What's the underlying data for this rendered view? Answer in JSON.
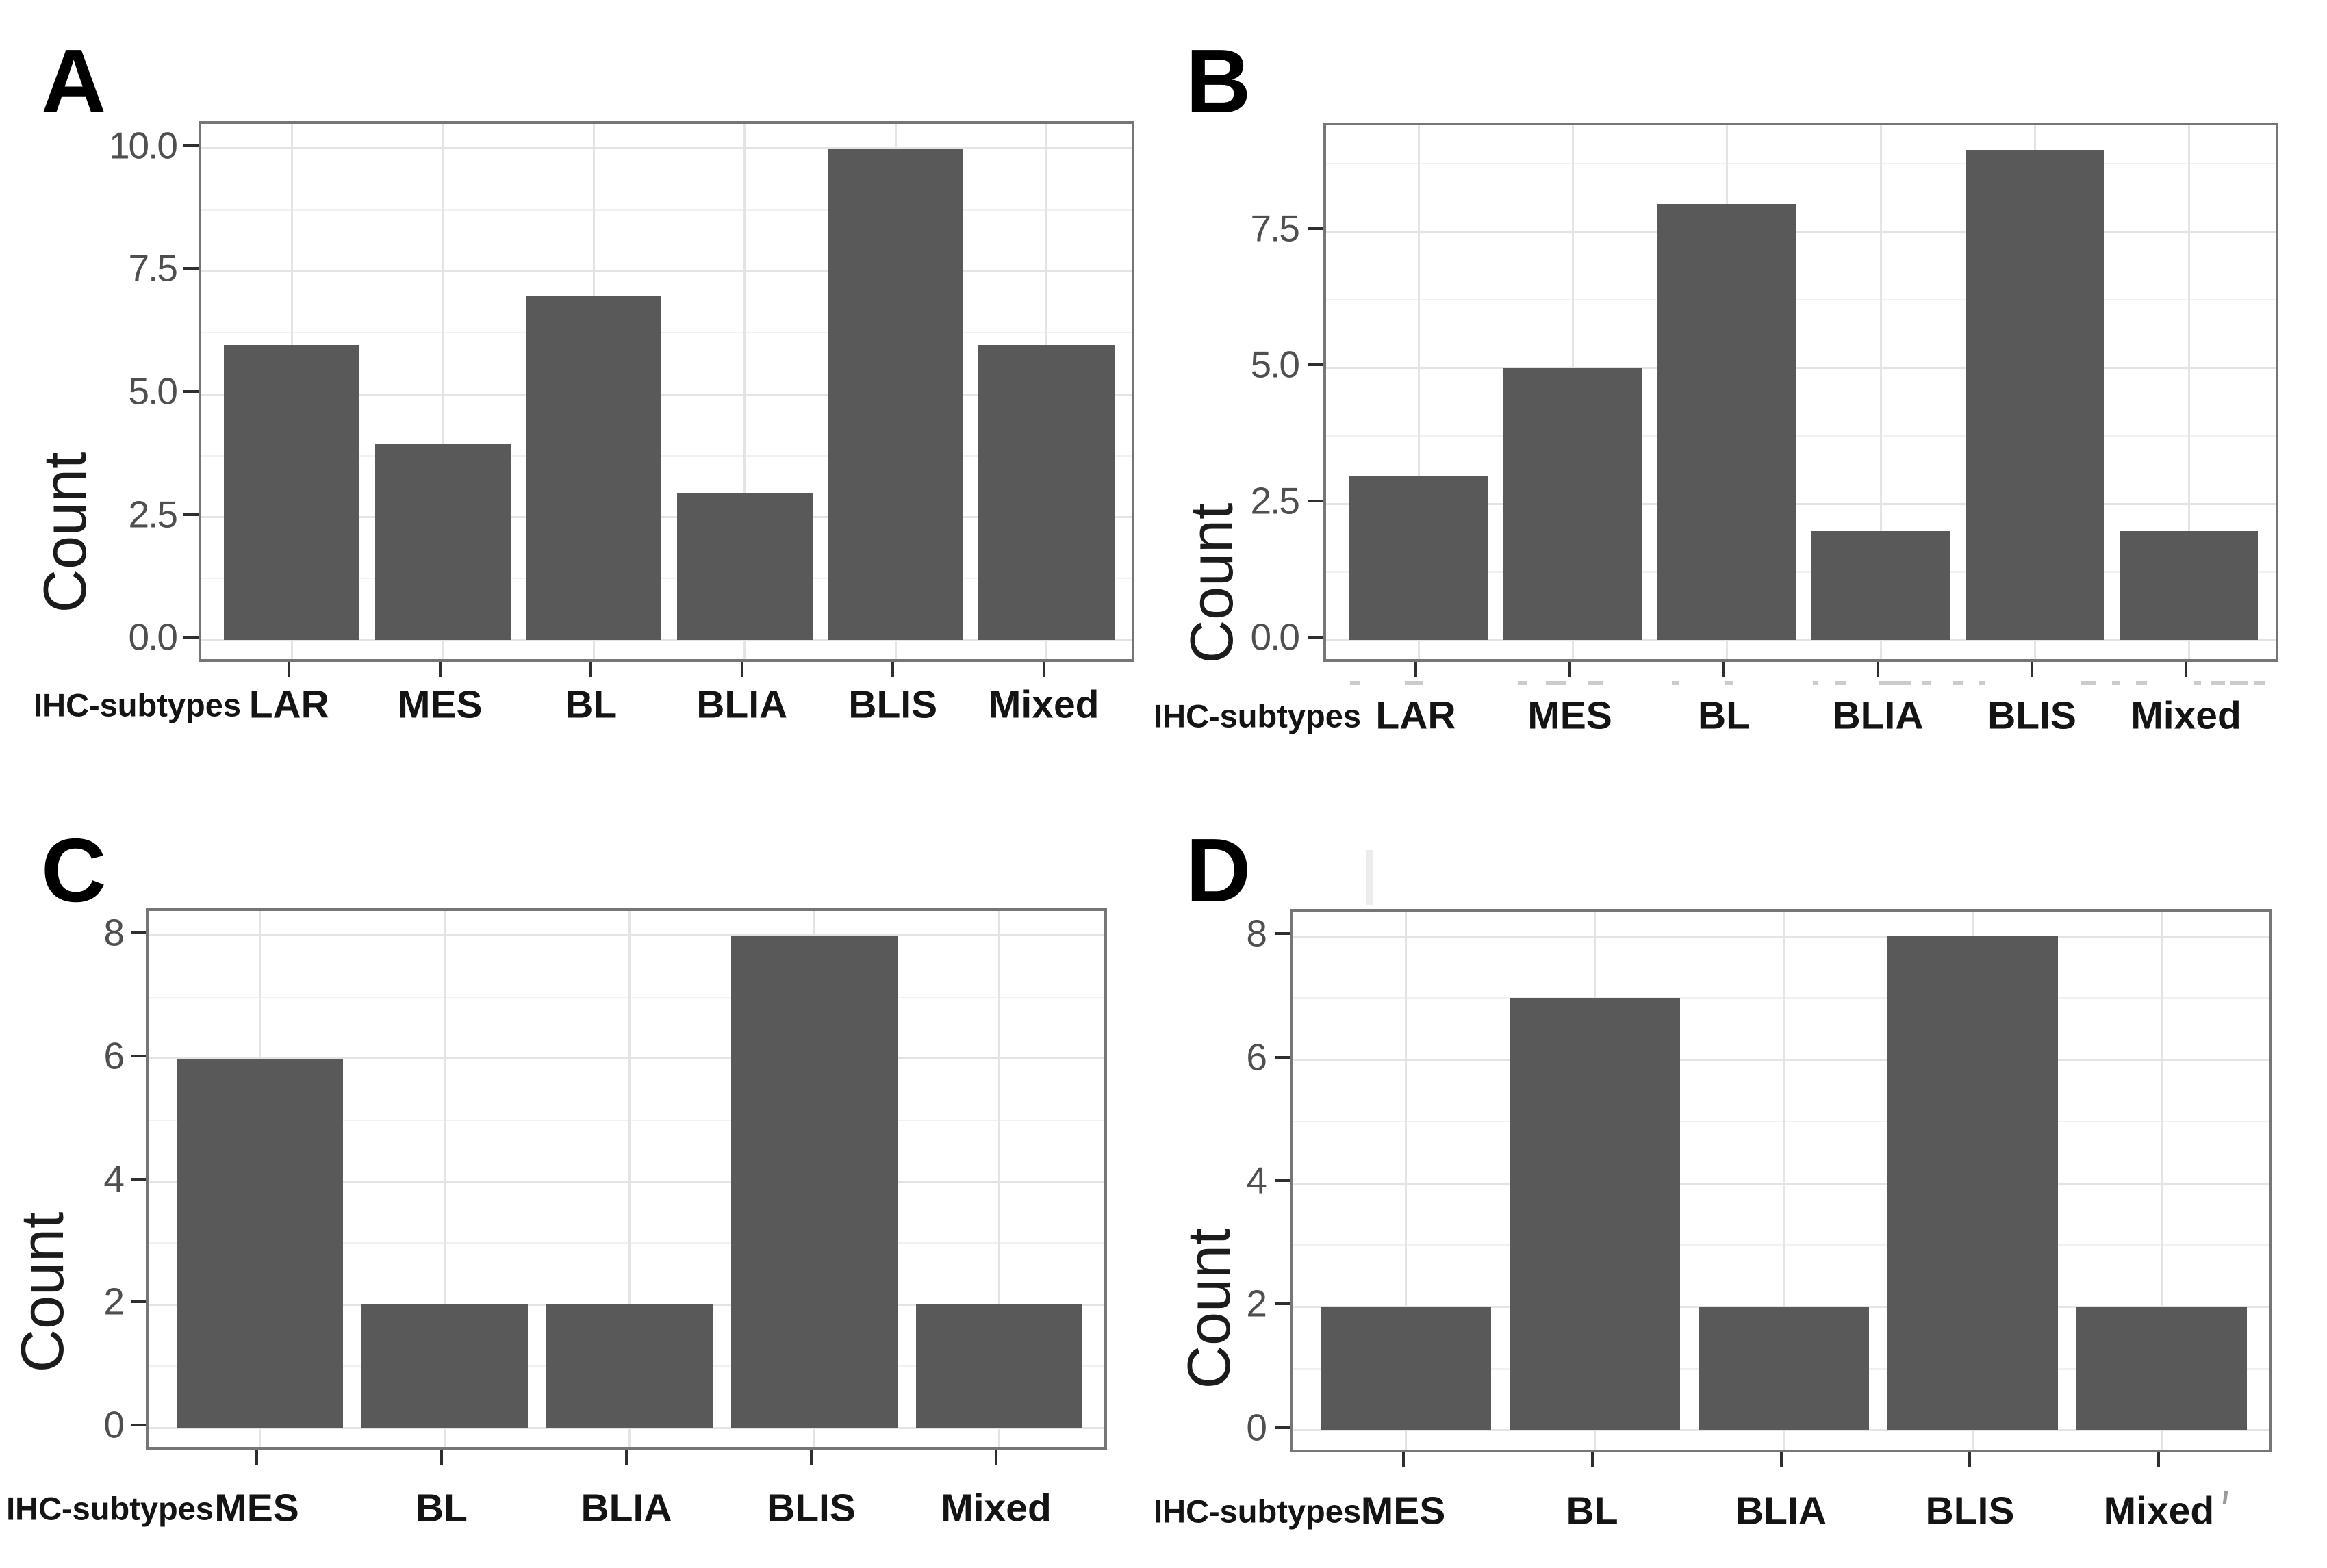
{
  "figure_type": "four-panel-bar-figure",
  "colors": {
    "bar_fill": "#595959",
    "panel_border": "#767676",
    "grid_major": "#e4e4e4",
    "grid_minor": "#f1f1f1",
    "tick_mark": "#2e2e2e",
    "tick_label": "#4f4f4f",
    "axis_text": "#141414",
    "background": "#ffffff"
  },
  "chart_data": [
    {
      "type": "bar",
      "panel_label": "A",
      "title": "",
      "ylabel": "Count",
      "xlabel": "IHC-subtypes",
      "categories": [
        "LAR",
        "MES",
        "BL",
        "BLIA",
        "BLIS",
        "Mixed"
      ],
      "values": [
        6,
        4,
        7,
        3,
        10,
        6
      ],
      "yticks": [
        {
          "label": "0.0",
          "value": 0
        },
        {
          "label": "2.5",
          "value": 2.5
        },
        {
          "label": "5.0",
          "value": 5
        },
        {
          "label": "7.5",
          "value": 7.5
        },
        {
          "label": "10.0",
          "value": 10
        }
      ],
      "ylim": [
        -0.5,
        10.5
      ],
      "grid": true,
      "legend": "none"
    },
    {
      "type": "bar",
      "panel_label": "B",
      "title": "",
      "ylabel": "Count",
      "xlabel": "IHC-subtypes",
      "categories": [
        "LAR",
        "MES",
        "BL",
        "BLIA",
        "BLIS",
        "Mixed"
      ],
      "values": [
        3,
        5,
        8,
        2,
        9,
        2
      ],
      "yticks": [
        {
          "label": "0.0",
          "value": 0
        },
        {
          "label": "2.5",
          "value": 2.5
        },
        {
          "label": "5.0",
          "value": 5
        },
        {
          "label": "7.5",
          "value": 7.5
        }
      ],
      "ylim": [
        -0.45,
        9.45
      ],
      "grid": true,
      "legend": "none"
    },
    {
      "type": "bar",
      "panel_label": "C",
      "title": "",
      "ylabel": "Count",
      "xlabel": "IHC-subtypes",
      "categories": [
        "MES",
        "BL",
        "BLIA",
        "BLIS",
        "Mixed"
      ],
      "values": [
        6,
        2,
        2,
        8,
        2
      ],
      "yticks": [
        {
          "label": "0",
          "value": 0
        },
        {
          "label": "2",
          "value": 2
        },
        {
          "label": "4",
          "value": 4
        },
        {
          "label": "6",
          "value": 6
        },
        {
          "label": "8",
          "value": 8
        }
      ],
      "ylim": [
        -0.4,
        8.4
      ],
      "grid": true,
      "legend": "none"
    },
    {
      "type": "bar",
      "panel_label": "D",
      "title": "",
      "ylabel": "Count",
      "xlabel": "IHC-subtypes",
      "categories": [
        "MES",
        "BL",
        "BLIA",
        "BLIS",
        "Mixed"
      ],
      "values": [
        2,
        7,
        2,
        8,
        2
      ],
      "yticks": [
        {
          "label": "0",
          "value": 0
        },
        {
          "label": "2",
          "value": 2
        },
        {
          "label": "4",
          "value": 4
        },
        {
          "label": "6",
          "value": 6
        },
        {
          "label": "8",
          "value": 8
        }
      ],
      "ylim": [
        -0.4,
        8.4
      ],
      "grid": true,
      "legend": "none"
    }
  ]
}
